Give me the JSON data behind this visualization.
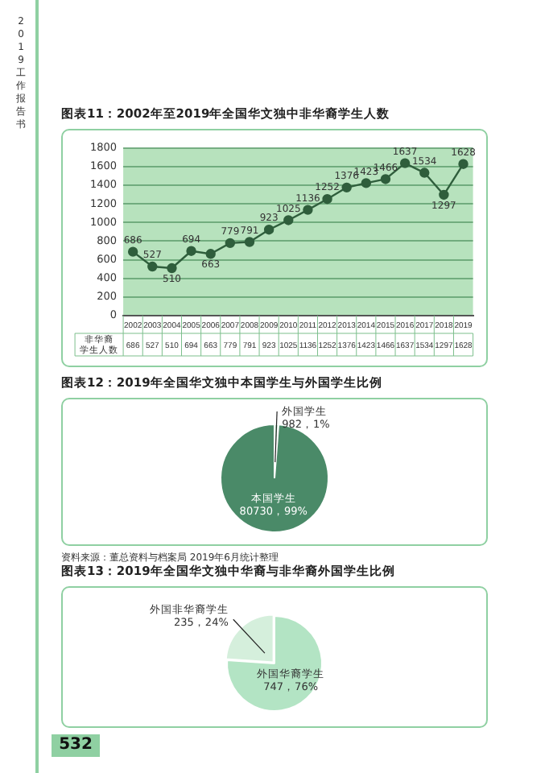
{
  "chart_data": [
    {
      "type": "line",
      "title": "图表11：2002年至2019年全国华文独中非华裔学生人数",
      "categories": [
        "2002",
        "2003",
        "2004",
        "2005",
        "2006",
        "2007",
        "2008",
        "2009",
        "2010",
        "2011",
        "2012",
        "2013",
        "2014",
        "2015",
        "2016",
        "2017",
        "2018",
        "2019"
      ],
      "series": [
        {
          "name": "非华裔学生人数",
          "color": "#2f5e3c",
          "values": [
            686,
            527,
            510,
            694,
            663,
            779,
            791,
            923,
            1025,
            1136,
            1252,
            1376,
            1423,
            1466,
            1637,
            1534,
            1297,
            1628
          ],
          "value_labels": [
            "686",
            "527",
            "510",
            "694",
            "663",
            "779",
            "791",
            "923",
            "1025",
            "1136",
            "1252",
            "1376",
            "1423",
            "1466",
            "1637",
            "1534",
            "1297",
            "1628"
          ]
        }
      ],
      "ylim": [
        0,
        1800
      ],
      "yticks": [
        0,
        200,
        400,
        600,
        800,
        1000,
        1200,
        1400,
        1600,
        1800
      ],
      "grid": "y",
      "marker": "circle",
      "line_style": "solid",
      "data_labels": true,
      "legend": false,
      "annotations": [
        "2019工作报告书"
      ]
    },
    {
      "type": "pie",
      "title": "图表12：2019年全国华文独中本国学生与外国学生比例",
      "categories": [
        "外国学生",
        "本国学生"
      ],
      "values": [
        982,
        80730
      ],
      "colors": [
        "#c3ead0",
        "#4a8a68"
      ],
      "value_labels": [
        "982，1%",
        "80730，99%"
      ],
      "legend": false,
      "annotations": [
        "资料来源：董总资料与档案局 2019年6月统计整理"
      ]
    },
    {
      "type": "pie",
      "title": "图表13：2019年全国华文独中华裔与非华裔外国学生比例",
      "categories": [
        "外国华裔学生",
        "外国非华裔学生"
      ],
      "values": [
        747,
        235
      ],
      "colors": [
        "#b3e4c4",
        "#d5efdc"
      ],
      "value_labels": [
        "747，76%",
        "235，24%"
      ],
      "legend": false,
      "annotations": [
        "532"
      ]
    }
  ]
}
